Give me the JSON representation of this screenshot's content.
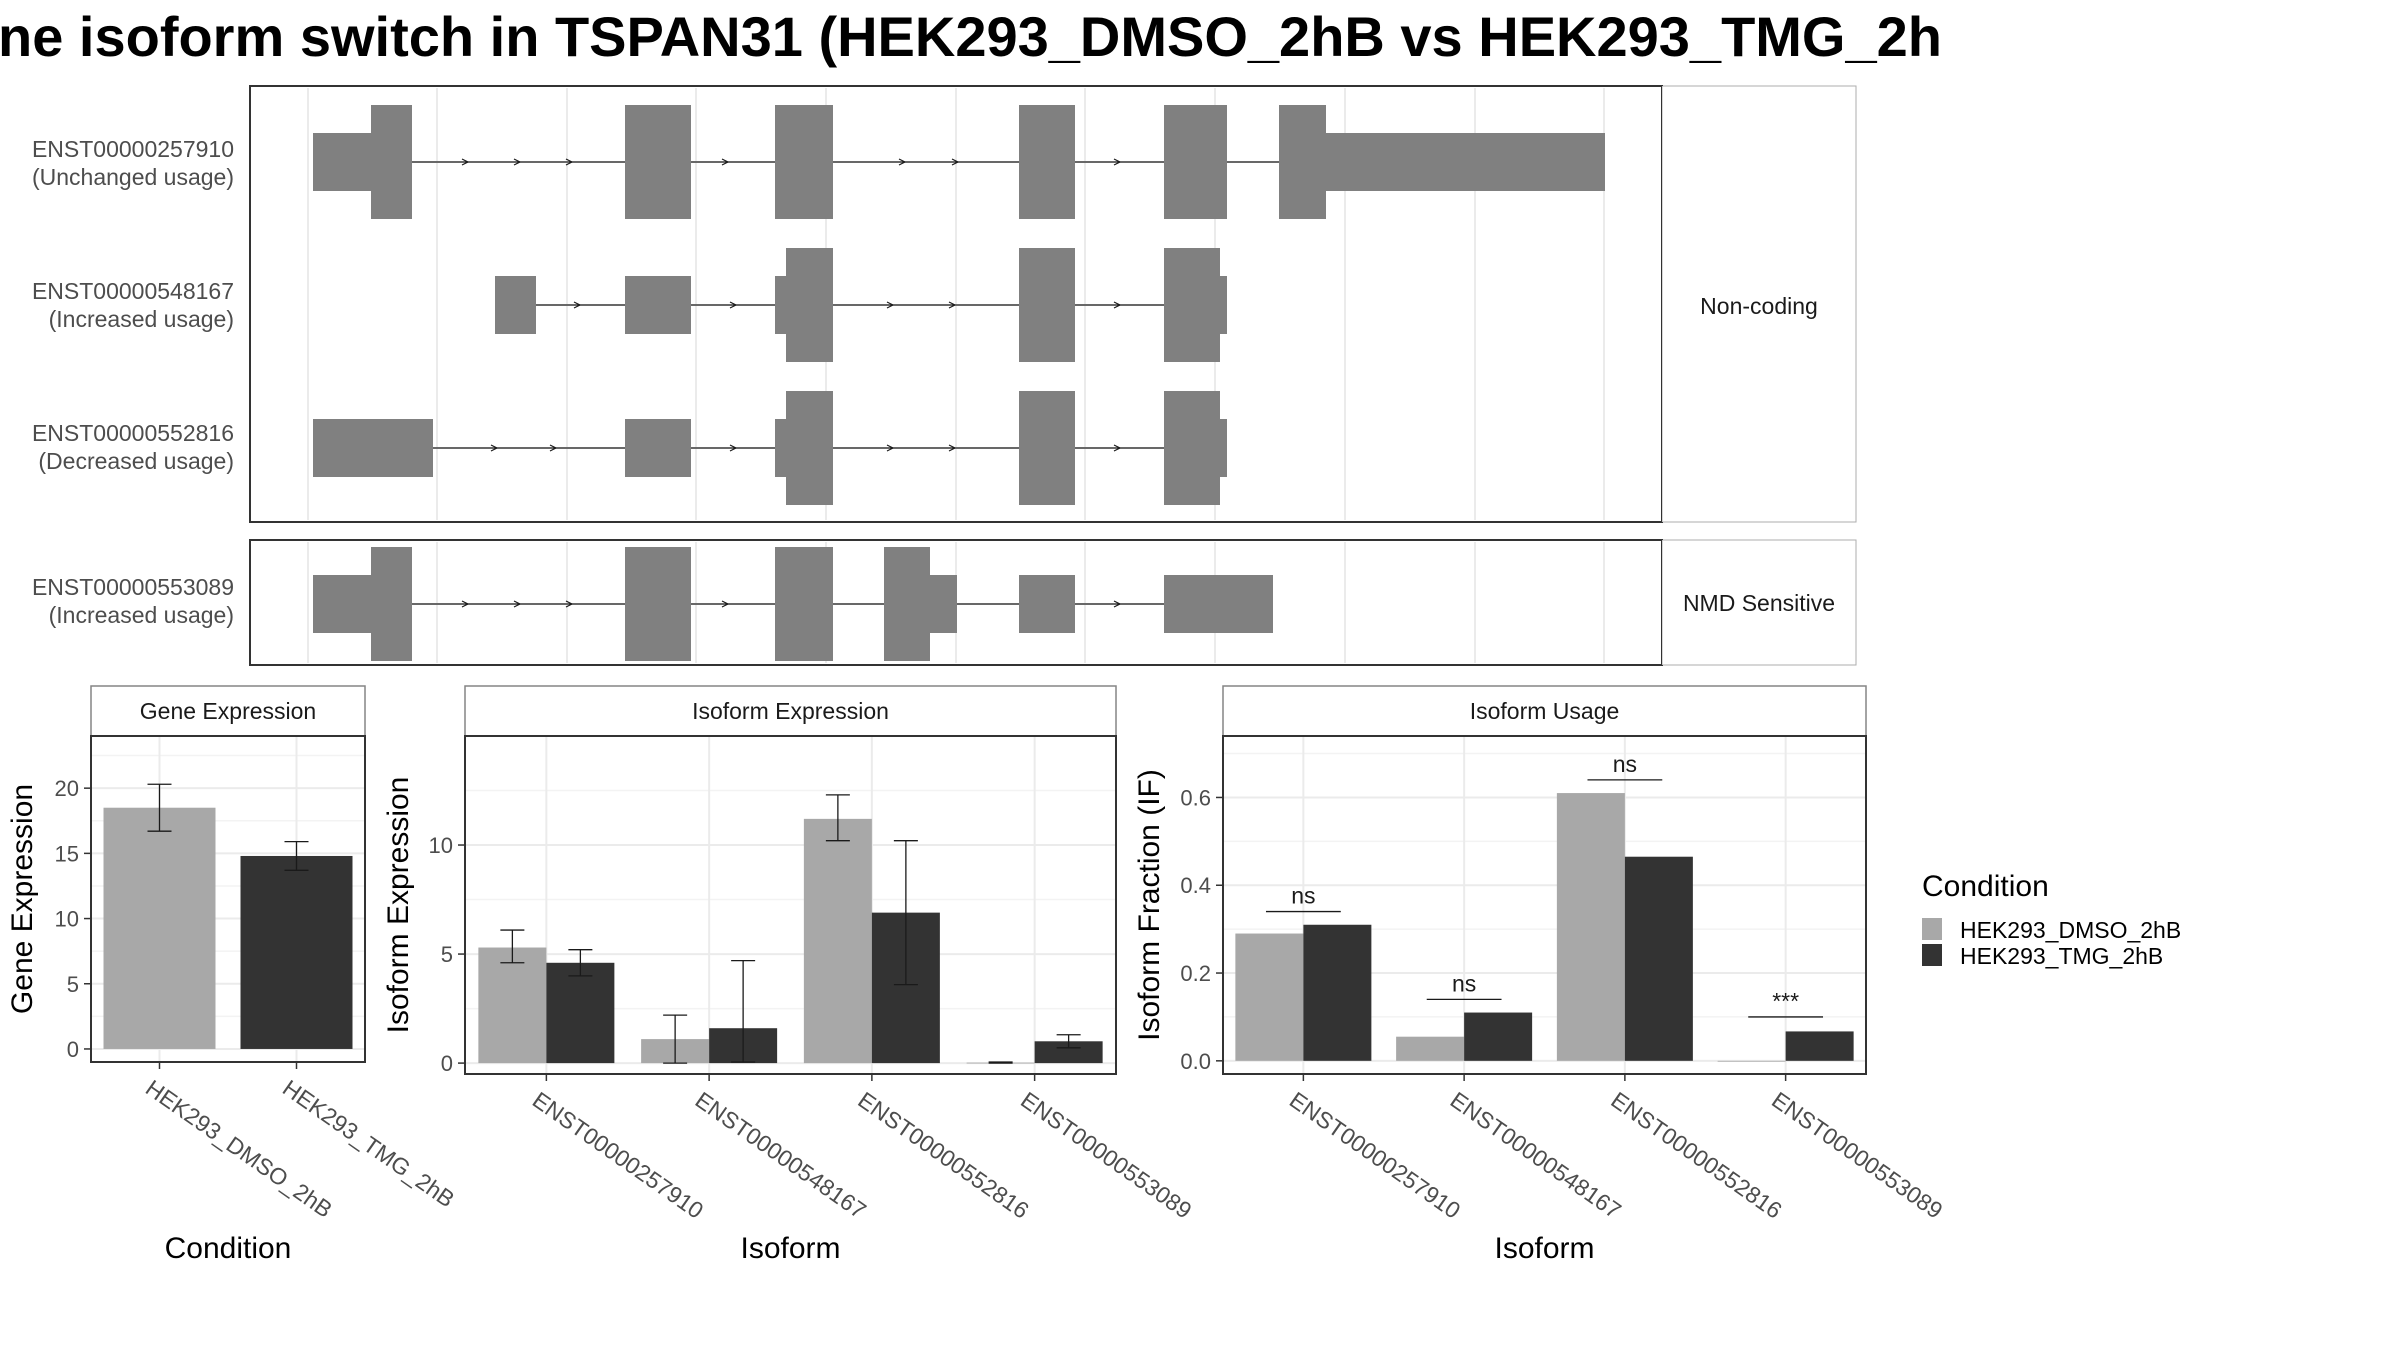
{
  "title": "ne isoform switch in TSPAN31 (HEK293_DMSO_2hB vs HEK293_TMG_2h",
  "colors": {
    "exon": "#808080",
    "dmso": "#a8a8a8",
    "tmg": "#333333",
    "strip_bg": "#ffffff",
    "grid": "#ebebeb",
    "panel_border": "#333333"
  },
  "transcripts": {
    "groups": [
      {
        "label": "Non-coding",
        "rows": [
          {
            "id": "ENST00000257910",
            "usage": "(Unchanged usage)"
          },
          {
            "id": "ENST00000548167",
            "usage": "(Increased usage)"
          },
          {
            "id": "ENST00000552816",
            "usage": "(Decreased usage)"
          }
        ]
      },
      {
        "label": "NMD Sensitive",
        "rows": [
          {
            "id": "ENST00000553089",
            "usage": "(Increased usage)"
          }
        ]
      }
    ]
  },
  "legend": {
    "title": "Condition",
    "items": [
      "HEK293_DMSO_2hB",
      "HEK293_TMG_2hB"
    ]
  },
  "chart_data": [
    {
      "type": "bar",
      "title": "Gene Expression",
      "xlabel": "Condition",
      "ylabel": "Gene Expression",
      "ylim": [
        -1,
        24
      ],
      "yticks": [
        0,
        5,
        10,
        15,
        20
      ],
      "categories": [
        "HEK293_DMSO_2hB",
        "HEK293_TMG_2hB"
      ],
      "values": [
        18.5,
        14.8
      ],
      "error": [
        [
          16.7,
          20.3
        ],
        [
          13.7,
          15.9
        ]
      ]
    },
    {
      "type": "bar",
      "title": "Isoform Expression",
      "xlabel": "Isoform",
      "ylabel": "Isoform Expression",
      "ylim": [
        -0.5,
        15
      ],
      "yticks": [
        0,
        5,
        10
      ],
      "categories": [
        "ENST00000257910",
        "ENST00000548167",
        "ENST00000552816",
        "ENST00000553089"
      ],
      "series": [
        {
          "name": "HEK293_DMSO_2hB",
          "values": [
            5.3,
            1.1,
            11.2,
            0.02
          ],
          "error": [
            [
              4.6,
              6.1
            ],
            [
              0.0,
              2.2
            ],
            [
              10.2,
              12.3
            ],
            [
              0.0,
              0.05
            ]
          ]
        },
        {
          "name": "HEK293_TMG_2hB",
          "values": [
            4.6,
            1.6,
            6.9,
            1.0
          ],
          "error": [
            [
              4.0,
              5.2
            ],
            [
              0.05,
              4.7
            ],
            [
              3.6,
              10.2
            ],
            [
              0.7,
              1.3
            ]
          ]
        }
      ]
    },
    {
      "type": "bar",
      "title": "Isoform Usage",
      "xlabel": "Isoform",
      "ylabel": "Isoform Fraction (IF)",
      "ylim": [
        -0.03,
        0.74
      ],
      "yticks": [
        "0.0",
        "0.2",
        "0.4",
        "0.6"
      ],
      "categories": [
        "ENST00000257910",
        "ENST00000548167",
        "ENST00000552816",
        "ENST00000553089"
      ],
      "series": [
        {
          "name": "HEK293_DMSO_2hB",
          "values": [
            0.29,
            0.055,
            0.61,
            0.0
          ]
        },
        {
          "name": "HEK293_TMG_2hB",
          "values": [
            0.31,
            0.11,
            0.465,
            0.067
          ]
        }
      ],
      "significance": [
        {
          "label": "ns",
          "level": 0.34
        },
        {
          "label": "ns",
          "level": 0.14
        },
        {
          "label": "ns",
          "level": 0.64
        },
        {
          "label": "***",
          "level": 0.1
        }
      ]
    }
  ]
}
